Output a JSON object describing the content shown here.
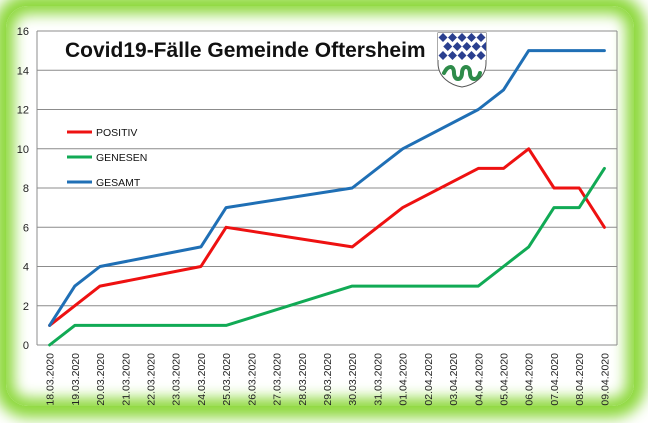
{
  "chart_data": {
    "type": "line",
    "title": "Covid19-Fälle Gemeinde Oftersheim",
    "xlabel": "",
    "ylabel": "",
    "ylim": [
      0,
      16
    ],
    "yticks": [
      0,
      2,
      4,
      6,
      8,
      10,
      12,
      14,
      16
    ],
    "grid": "horizontal",
    "legend_position": "left",
    "categories": [
      "18.03.2020",
      "19.03.2020",
      "20.03.2020",
      "21.03.2020",
      "22.03.2020",
      "23.03.2020",
      "24.03.2020",
      "25.03.2020",
      "26.03.2020",
      "27.03.2020",
      "28.03.2020",
      "29.03.2020",
      "30.03.2020",
      "31.03.2020",
      "01.04.2020",
      "02.04.2020",
      "03.04.2020",
      "04.04.2020",
      "05.04.2020",
      "06.04.2020",
      "07.04.2020",
      "08.04.2020",
      "09.04.2020"
    ],
    "series": [
      {
        "name": "POSITIV",
        "color": "#ee1111",
        "values": [
          1,
          null,
          3,
          null,
          null,
          null,
          4,
          6,
          null,
          null,
          null,
          null,
          5,
          null,
          7,
          null,
          null,
          9,
          9,
          10,
          8,
          8,
          6
        ]
      },
      {
        "name": "GENESEN",
        "color": "#11aa55",
        "values": [
          0,
          1,
          1,
          null,
          null,
          null,
          1,
          1,
          null,
          null,
          null,
          null,
          3,
          null,
          3,
          null,
          null,
          3,
          4,
          5,
          7,
          7,
          9
        ]
      },
      {
        "name": "GESAMT",
        "color": "#1f6fb5",
        "values": [
          1,
          3,
          4,
          null,
          null,
          null,
          5,
          7,
          null,
          null,
          null,
          null,
          8,
          null,
          10,
          null,
          null,
          12,
          13,
          15,
          15,
          15,
          15
        ]
      }
    ]
  },
  "emblem": {
    "name": "coat-of-arms-icon",
    "colors": [
      "#2a3f8f",
      "#ffffff",
      "#2e8b4a"
    ]
  }
}
